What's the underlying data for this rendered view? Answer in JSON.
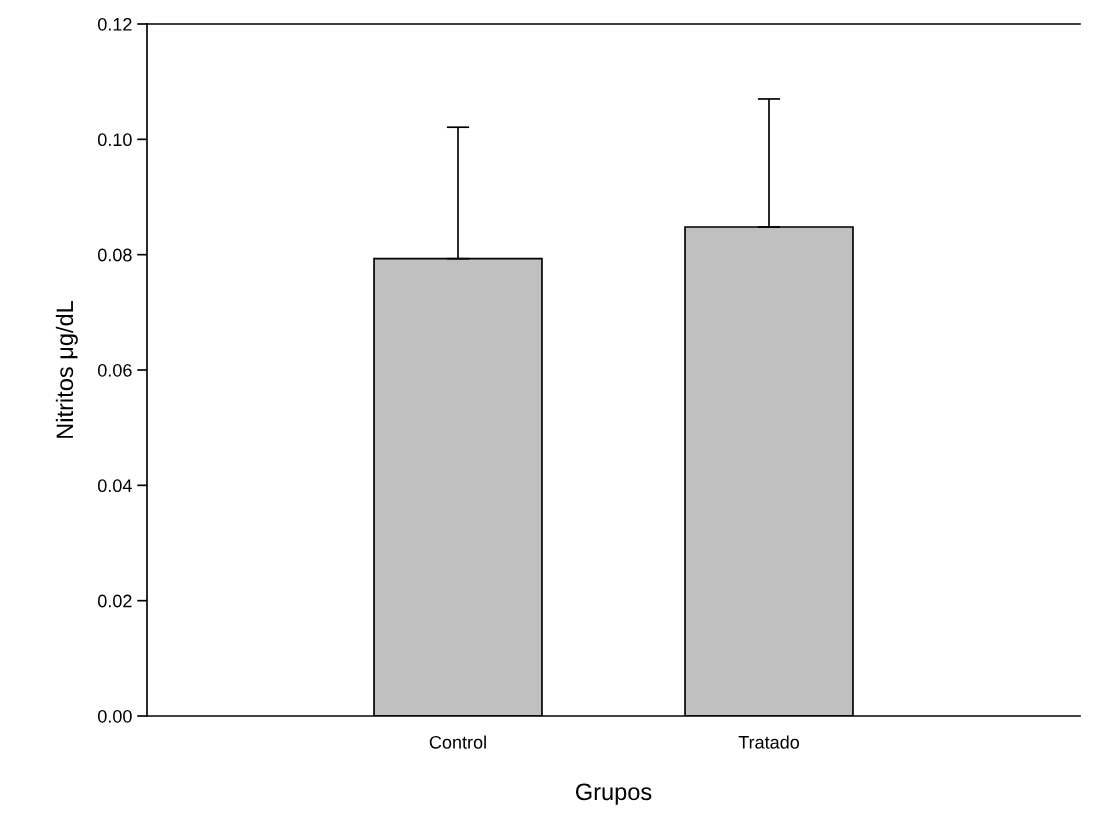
{
  "chart_data": {
    "type": "bar",
    "xlabel": "Grupos",
    "ylabel": "Nitritos μg/dL",
    "categories": [
      "Control",
      "Tratado"
    ],
    "values": [
      0.0793,
      0.0848
    ],
    "errors": [
      [
        0.0793,
        0.1021
      ],
      [
        0.0848,
        0.107
      ]
    ],
    "color": "#c0c0c0",
    "ylim": [
      0,
      0.12
    ],
    "yticks": [
      {
        "value": 0,
        "label": "0.00"
      },
      {
        "value": 0.02,
        "label": "0.02"
      },
      {
        "value": 0.04,
        "label": "0.04"
      },
      {
        "value": 0.06,
        "label": "0.06"
      },
      {
        "value": 0.08,
        "label": "0.08"
      },
      {
        "value": 0.1,
        "label": "0.10"
      },
      {
        "value": 0.12,
        "label": "0.12"
      }
    ],
    "grid": false,
    "legend": false
  }
}
